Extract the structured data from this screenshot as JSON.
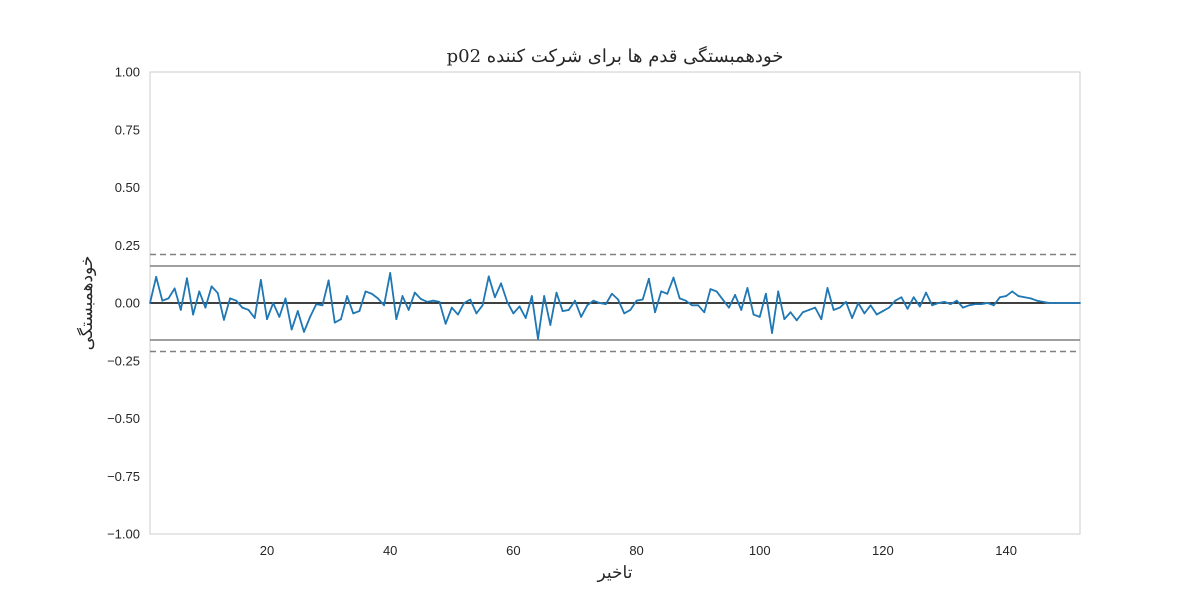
{
  "chart_data": {
    "type": "line",
    "title": "خودهمبستگی قدم ها برای شرکت کننده p02",
    "xlabel": "تاخیر",
    "ylabel": "خودهمبستگی",
    "xlim": [
      1,
      152
    ],
    "ylim": [
      -1.0,
      1.0
    ],
    "xticks": [
      20,
      40,
      60,
      80,
      100,
      120,
      140
    ],
    "xtick_labels": [
      "20",
      "40",
      "60",
      "80",
      "100",
      "120",
      "140"
    ],
    "yticks": [
      1.0,
      0.75,
      0.5,
      0.25,
      0.0,
      -0.25,
      -0.5,
      -0.75,
      -1.0
    ],
    "ytick_labels": [
      "1.00",
      "0.75",
      "0.50",
      "0.25",
      "0.00",
      "−0.25",
      "−0.50",
      "−0.75",
      "−1.00"
    ],
    "grid": false,
    "reference_lines": [
      {
        "y": 0.0,
        "style": "solid",
        "color": "#000000"
      },
      {
        "y": 0.16,
        "style": "solid",
        "color": "#808080"
      },
      {
        "y": -0.16,
        "style": "solid",
        "color": "#808080"
      },
      {
        "y": 0.21,
        "style": "dashed",
        "color": "#808080"
      },
      {
        "y": -0.21,
        "style": "dashed",
        "color": "#808080"
      }
    ],
    "series": [
      {
        "color": "#1f77b4",
        "x": [
          1,
          2,
          3,
          4,
          5,
          6,
          7,
          8,
          9,
          10,
          11,
          12,
          13,
          14,
          15,
          16,
          17,
          18,
          19,
          20,
          21,
          22,
          23,
          24,
          25,
          26,
          27,
          28,
          29,
          30,
          31,
          32,
          33,
          34,
          35,
          36,
          37,
          38,
          39,
          40,
          41,
          42,
          43,
          44,
          45,
          46,
          47,
          48,
          49,
          50,
          51,
          52,
          53,
          54,
          55,
          56,
          57,
          58,
          59,
          60,
          61,
          62,
          63,
          64,
          65,
          66,
          67,
          68,
          69,
          70,
          71,
          72,
          73,
          74,
          75,
          76,
          77,
          78,
          79,
          80,
          81,
          82,
          83,
          84,
          85,
          86,
          87,
          88,
          89,
          90,
          91,
          92,
          93,
          94,
          95,
          96,
          97,
          98,
          99,
          100,
          101,
          102,
          103,
          104,
          105,
          106,
          107,
          108,
          109,
          110,
          111,
          112,
          113,
          114,
          115,
          116,
          117,
          118,
          119,
          120,
          121,
          122,
          123,
          124,
          125,
          126,
          127,
          128,
          129,
          130,
          131,
          132,
          133,
          134,
          135,
          136,
          137,
          138,
          139,
          140,
          141,
          142,
          143,
          144,
          145,
          146,
          147,
          148,
          149,
          150,
          151,
          152
        ],
        "values": [
          0.0,
          0.113,
          0.01,
          0.02,
          0.063,
          -0.03,
          0.107,
          -0.05,
          0.05,
          -0.02,
          0.072,
          0.043,
          -0.073,
          0.02,
          0.01,
          -0.02,
          -0.03,
          -0.065,
          0.1,
          -0.07,
          0.0,
          -0.06,
          0.02,
          -0.115,
          -0.035,
          -0.125,
          -0.06,
          -0.005,
          -0.01,
          0.098,
          -0.085,
          -0.07,
          0.03,
          -0.045,
          -0.035,
          0.05,
          0.04,
          0.02,
          -0.01,
          0.13,
          -0.07,
          0.03,
          -0.03,
          0.045,
          0.017,
          0.005,
          0.01,
          0.005,
          -0.09,
          -0.02,
          -0.05,
          0.0,
          0.015,
          -0.045,
          -0.01,
          0.115,
          0.025,
          0.085,
          0.005,
          -0.045,
          -0.015,
          -0.065,
          0.03,
          -0.155,
          0.03,
          -0.095,
          0.045,
          -0.035,
          -0.03,
          0.01,
          -0.06,
          -0.01,
          0.01,
          0.0,
          -0.005,
          0.04,
          0.015,
          -0.045,
          -0.03,
          0.01,
          0.015,
          0.105,
          -0.04,
          0.05,
          0.04,
          0.11,
          0.02,
          0.01,
          -0.01,
          -0.01,
          -0.04,
          0.06,
          0.05,
          0.015,
          -0.02,
          0.035,
          -0.03,
          0.065,
          -0.05,
          -0.06,
          0.04,
          -0.13,
          0.05,
          -0.07,
          -0.04,
          -0.075,
          -0.04,
          -0.03,
          -0.02,
          -0.07,
          0.065,
          -0.03,
          -0.02,
          0.005,
          -0.065,
          0.0,
          -0.045,
          -0.01,
          -0.05,
          -0.035,
          -0.02,
          0.01,
          0.025,
          -0.025,
          0.025,
          -0.015,
          0.045,
          -0.01,
          0.0,
          0.005,
          -0.005,
          0.01,
          -0.02,
          -0.01,
          -0.005,
          -0.005,
          0.0,
          -0.01,
          0.025,
          0.03,
          0.05,
          0.03,
          0.025,
          0.02,
          0.01,
          0.005,
          0.0,
          0.0,
          0.0,
          0.0,
          0.0,
          0.0
        ]
      }
    ]
  }
}
